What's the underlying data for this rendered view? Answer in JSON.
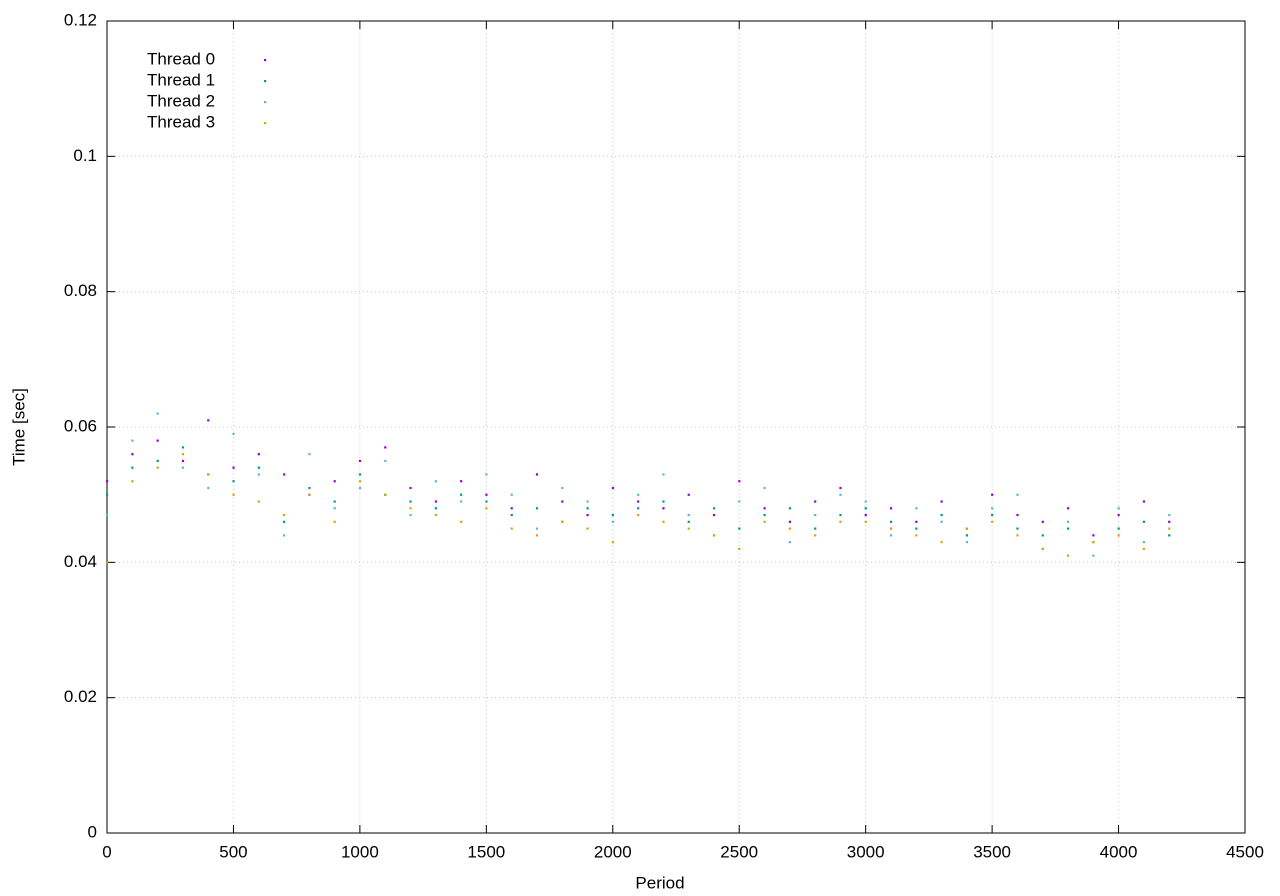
{
  "chart_data": {
    "type": "scatter",
    "xlabel": "Period",
    "ylabel": "Time [sec]",
    "xlim": [
      0,
      4500
    ],
    "xticks": [
      0,
      500,
      1000,
      1500,
      2000,
      2500,
      3000,
      3500,
      4000,
      4500
    ],
    "ylim": [
      0,
      0.12
    ],
    "yticks": [
      0,
      0.02,
      0.04,
      0.06,
      0.08,
      0.1,
      0.12
    ],
    "grid": true,
    "legend": "top-left",
    "x": [
      0,
      100,
      200,
      300,
      400,
      500,
      600,
      700,
      800,
      900,
      1000,
      1100,
      1200,
      1300,
      1400,
      1500,
      1600,
      1700,
      1800,
      1900,
      2000,
      2100,
      2200,
      2300,
      2400,
      2500,
      2600,
      2700,
      2800,
      2900,
      3000,
      3100,
      3200,
      3300,
      3400,
      3500,
      3600,
      3700,
      3800,
      3900,
      4000,
      4100,
      4200
    ],
    "series": [
      {
        "name": "Thread 0",
        "color": "#9400d3",
        "values": [
          0.052,
          0.056,
          0.058,
          0.055,
          0.061,
          0.054,
          0.056,
          0.053,
          0.05,
          0.052,
          0.055,
          0.057,
          0.051,
          0.049,
          0.052,
          0.05,
          0.048,
          0.053,
          0.049,
          0.047,
          0.051,
          0.049,
          0.048,
          0.05,
          0.047,
          0.052,
          0.048,
          0.046,
          0.049,
          0.051,
          0.047,
          0.048,
          0.046,
          0.049,
          0.045,
          0.05,
          0.047,
          0.046,
          0.048,
          0.044,
          0.047,
          0.049,
          0.046
        ]
      },
      {
        "name": "Thread 1",
        "color": "#009e73",
        "values": [
          0.05,
          0.054,
          0.055,
          0.057,
          0.053,
          0.052,
          0.054,
          0.046,
          0.051,
          0.049,
          0.053,
          0.05,
          0.049,
          0.048,
          0.05,
          0.049,
          0.047,
          0.048,
          0.046,
          0.048,
          0.047,
          0.048,
          0.049,
          0.046,
          0.048,
          0.045,
          0.047,
          0.048,
          0.045,
          0.047,
          0.048,
          0.046,
          0.045,
          0.047,
          0.044,
          0.047,
          0.045,
          0.044,
          0.045,
          0.043,
          0.045,
          0.046,
          0.044
        ]
      },
      {
        "name": "Thread 2",
        "color": "#56b4e9",
        "values": [
          0.047,
          0.058,
          0.062,
          0.054,
          0.051,
          0.059,
          0.053,
          0.044,
          0.056,
          0.048,
          0.051,
          0.055,
          0.047,
          0.052,
          0.049,
          0.053,
          0.05,
          0.045,
          0.051,
          0.049,
          0.046,
          0.05,
          0.053,
          0.047,
          0.044,
          0.049,
          0.051,
          0.043,
          0.047,
          0.05,
          0.049,
          0.044,
          0.048,
          0.046,
          0.043,
          0.048,
          0.05,
          0.042,
          0.046,
          0.041,
          0.048,
          0.043,
          0.047
        ]
      },
      {
        "name": "Thread 3",
        "color": "#e69f00",
        "values": [
          0.04,
          0.052,
          0.054,
          0.056,
          0.053,
          0.05,
          0.049,
          0.047,
          0.05,
          0.046,
          0.052,
          0.05,
          0.048,
          0.047,
          0.046,
          0.048,
          0.045,
          0.044,
          0.046,
          0.045,
          0.043,
          0.047,
          0.046,
          0.045,
          0.044,
          0.042,
          0.046,
          0.045,
          0.044,
          0.046,
          0.046,
          0.045,
          0.044,
          0.043,
          0.045,
          0.046,
          0.044,
          0.042,
          0.041,
          0.043,
          0.044,
          0.042,
          0.045
        ]
      }
    ]
  }
}
